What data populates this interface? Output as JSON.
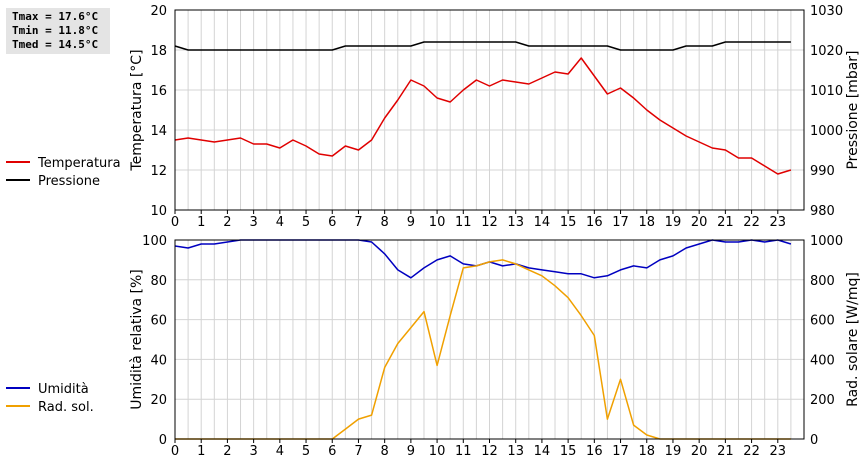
{
  "stats": {
    "tmax": "Tmax = 17.6°C",
    "tmin": "Tmin = 11.8°C",
    "tmed": "Tmed = 14.5°C"
  },
  "colors": {
    "temperature": "#e00000",
    "pressure": "#000000",
    "humidity": "#0000c0",
    "radiation": "#f0a000",
    "grid": "#d4d4d4"
  },
  "chart_data": [
    {
      "type": "line",
      "xlim": [
        0,
        24
      ],
      "xticks": [
        "0",
        "1",
        "2",
        "3",
        "4",
        "5",
        "6",
        "7",
        "8",
        "9",
        "10",
        "11",
        "12",
        "13",
        "14",
        "15",
        "16",
        "17",
        "18",
        "19",
        "20",
        "21",
        "22",
        "23"
      ],
      "left_axis": {
        "label": "Temperatura [°C]",
        "lim": [
          10,
          20
        ],
        "ticks": [
          "10",
          "12",
          "14",
          "16",
          "18",
          "20"
        ]
      },
      "right_axis": {
        "label": "Pressione [mbar]",
        "lim": [
          980,
          1030
        ],
        "ticks": [
          "980",
          "990",
          "1000",
          "1010",
          "1020",
          "1030"
        ]
      },
      "grid": true,
      "series": [
        {
          "name": "Temperatura",
          "axis": "left",
          "color": "#e00000",
          "x": [
            0,
            0.5,
            1,
            1.5,
            2,
            2.5,
            3,
            3.5,
            4,
            4.5,
            5,
            5.5,
            6,
            6.5,
            7,
            7.5,
            8,
            8.5,
            9,
            9.5,
            10,
            10.5,
            11,
            11.5,
            12,
            12.5,
            13,
            13.5,
            14,
            14.5,
            15,
            15.5,
            16,
            16.5,
            17,
            17.5,
            18,
            18.5,
            19,
            19.5,
            20,
            20.5,
            21,
            21.5,
            22,
            22.5,
            23,
            23.5
          ],
          "y": [
            13.5,
            13.6,
            13.5,
            13.4,
            13.5,
            13.6,
            13.3,
            13.3,
            13.1,
            13.5,
            13.2,
            12.8,
            12.7,
            13.2,
            13.0,
            13.5,
            14.6,
            15.5,
            16.5,
            16.2,
            15.6,
            15.4,
            16.0,
            16.5,
            16.2,
            16.5,
            16.4,
            16.3,
            16.6,
            16.9,
            16.8,
            17.6,
            16.7,
            15.8,
            16.1,
            15.6,
            15.0,
            14.5,
            14.1,
            13.7,
            13.4,
            13.1,
            13.0,
            12.6,
            12.6,
            12.2,
            11.8,
            12.0
          ]
        },
        {
          "name": "Pressione",
          "axis": "right",
          "color": "#000000",
          "x": [
            0,
            0.5,
            1,
            1.5,
            2,
            2.5,
            3,
            3.5,
            4,
            4.5,
            5,
            5.5,
            6,
            6.5,
            7,
            7.5,
            8,
            8.5,
            9,
            9.5,
            10,
            10.5,
            11,
            11.5,
            12,
            12.5,
            13,
            13.5,
            14,
            14.5,
            15,
            15.5,
            16,
            16.5,
            17,
            17.5,
            18,
            18.5,
            19,
            19.5,
            20,
            20.5,
            21,
            21.5,
            22,
            22.5,
            23,
            23.5
          ],
          "y": [
            1021,
            1020,
            1020,
            1020,
            1020,
            1020,
            1020,
            1020,
            1020,
            1020,
            1020,
            1020,
            1020,
            1021,
            1021,
            1021,
            1021,
            1021,
            1021,
            1022,
            1022,
            1022,
            1022,
            1022,
            1022,
            1022,
            1022,
            1021,
            1021,
            1021,
            1021,
            1021,
            1021,
            1021,
            1020,
            1020,
            1020,
            1020,
            1020,
            1021,
            1021,
            1021,
            1022,
            1022,
            1022,
            1022,
            1022,
            1022
          ]
        }
      ],
      "legend": [
        "Temperatura",
        "Pressione"
      ]
    },
    {
      "type": "line",
      "xlim": [
        0,
        24
      ],
      "xticks": [
        "0",
        "1",
        "2",
        "3",
        "4",
        "5",
        "6",
        "7",
        "8",
        "9",
        "10",
        "11",
        "12",
        "13",
        "14",
        "15",
        "16",
        "17",
        "18",
        "19",
        "20",
        "21",
        "22",
        "23"
      ],
      "left_axis": {
        "label": "Umidità relativa [%]",
        "lim": [
          0,
          100
        ],
        "ticks": [
          "0",
          "20",
          "40",
          "60",
          "80",
          "100"
        ]
      },
      "right_axis": {
        "label": "Rad. solare [W/mq]",
        "lim": [
          0,
          1000
        ],
        "ticks": [
          "0",
          "200",
          "400",
          "600",
          "800",
          "1000"
        ]
      },
      "grid": true,
      "series": [
        {
          "name": "Umidità",
          "axis": "left",
          "color": "#0000c0",
          "x": [
            0,
            0.5,
            1,
            1.5,
            2,
            2.5,
            3,
            3.5,
            4,
            4.5,
            5,
            5.5,
            6,
            6.5,
            7,
            7.5,
            8,
            8.5,
            9,
            9.5,
            10,
            10.5,
            11,
            11.5,
            12,
            12.5,
            13,
            13.5,
            14,
            14.5,
            15,
            15.5,
            16,
            16.5,
            17,
            17.5,
            18,
            18.5,
            19,
            19.5,
            20,
            20.5,
            21,
            21.5,
            22,
            22.5,
            23,
            23.5
          ],
          "y": [
            97,
            96,
            98,
            98,
            99,
            100,
            100,
            100,
            100,
            100,
            100,
            100,
            100,
            100,
            100,
            99,
            93,
            85,
            81,
            86,
            90,
            92,
            88,
            87,
            89,
            87,
            88,
            86,
            85,
            84,
            83,
            83,
            81,
            82,
            85,
            87,
            86,
            90,
            92,
            96,
            98,
            100,
            99,
            99,
            100,
            99,
            100,
            98
          ]
        },
        {
          "name": "Rad. sol.",
          "axis": "right",
          "color": "#f0a000",
          "x": [
            0,
            0.5,
            1,
            1.5,
            2,
            2.5,
            3,
            3.5,
            4,
            4.5,
            5,
            5.5,
            6,
            6.5,
            7,
            7.5,
            8,
            8.5,
            9,
            9.5,
            10,
            10.5,
            11,
            11.5,
            12,
            12.5,
            13,
            13.5,
            14,
            14.5,
            15,
            15.5,
            16,
            16.5,
            17,
            17.5,
            18,
            18.5,
            19,
            19.5,
            20,
            20.5,
            21,
            21.5,
            22,
            22.5,
            23,
            23.5
          ],
          "y": [
            0,
            0,
            0,
            0,
            0,
            0,
            0,
            0,
            0,
            0,
            0,
            0,
            0,
            50,
            100,
            120,
            360,
            480,
            560,
            640,
            370,
            620,
            860,
            870,
            890,
            900,
            880,
            850,
            820,
            770,
            710,
            620,
            520,
            100,
            300,
            70,
            20,
            0,
            0,
            0,
            0,
            0,
            0,
            0,
            0,
            0,
            0,
            0
          ]
        }
      ],
      "legend": [
        "Umidità",
        "Rad. sol."
      ]
    }
  ]
}
